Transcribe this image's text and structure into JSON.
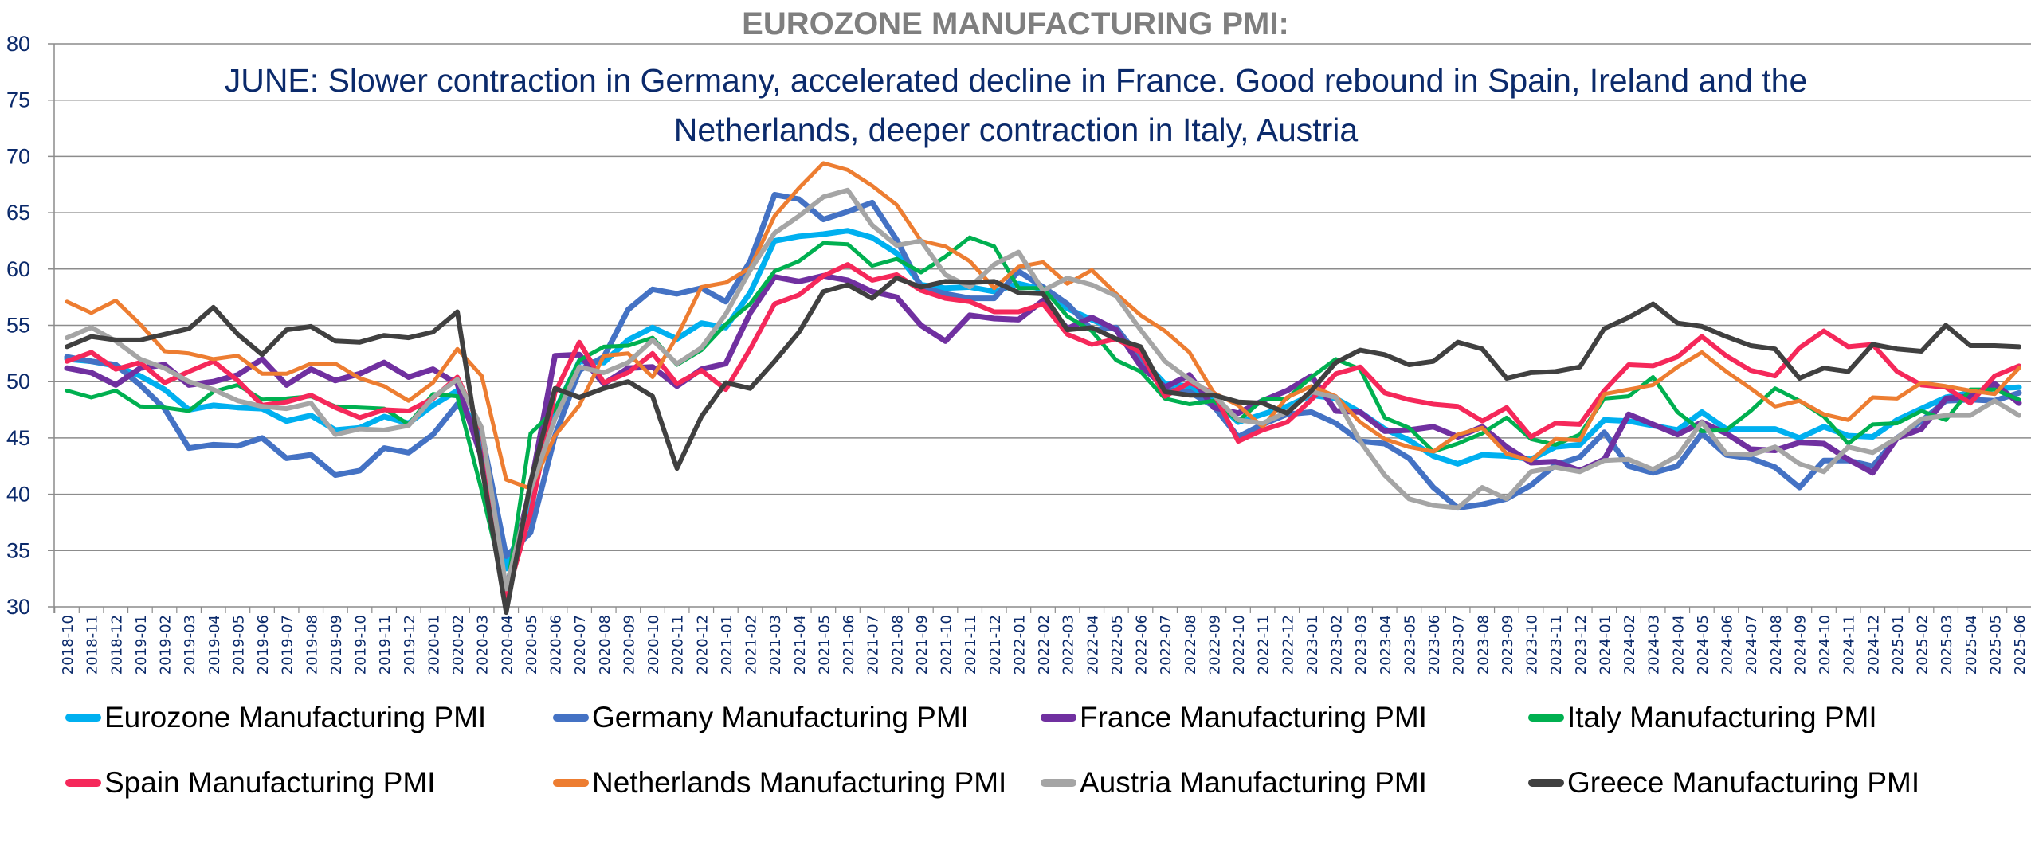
{
  "chart_data": {
    "type": "line",
    "title": "EUROZONE MANUFACTURING PMI:",
    "subtitle": "JUNE: Slower contraction in Germany, accelerated decline in France. Good rebound in Spain, Ireland and the Netherlands, deeper contraction in Italy, Austria",
    "xlabel": "",
    "ylabel": "",
    "ylim": [
      30,
      80
    ],
    "yticks": [
      30,
      35,
      40,
      45,
      50,
      55,
      60,
      65,
      70,
      75,
      80
    ],
    "grid": true,
    "legend_position": "bottom",
    "x": [
      "2018-10",
      "2018-11",
      "2018-12",
      "2019-01",
      "2019-02",
      "2019-03",
      "2019-04",
      "2019-05",
      "2019-06",
      "2019-07",
      "2019-08",
      "2019-09",
      "2019-10",
      "2019-11",
      "2019-12",
      "2020-01",
      "2020-02",
      "2020-03",
      "2020-04",
      "2020-05",
      "2020-06",
      "2020-07",
      "2020-08",
      "2020-09",
      "2020-10",
      "2020-11",
      "2020-12",
      "2021-01",
      "2021-02",
      "2021-03",
      "2021-04",
      "2021-05",
      "2021-06",
      "2021-07",
      "2021-08",
      "2021-09",
      "2021-10",
      "2021-11",
      "2021-12",
      "2022-01",
      "2022-02",
      "2022-03",
      "2022-04",
      "2022-05",
      "2022-06",
      "2022-07",
      "2022-08",
      "2022-09",
      "2022-10",
      "2022-11",
      "2022-12",
      "2023-01",
      "2023-02",
      "2023-03",
      "2023-04",
      "2023-05",
      "2023-06",
      "2023-07",
      "2023-08",
      "2023-09",
      "2023-10",
      "2023-11",
      "2023-12",
      "2024-01",
      "2024-02",
      "2024-03",
      "2024-04",
      "2024-05",
      "2024-06",
      "2024-07",
      "2024-08",
      "2024-09",
      "2024-10",
      "2024-11",
      "2024-12",
      "2025-01",
      "2025-02",
      "2025-03",
      "2025-04",
      "2025-05",
      "2025-06"
    ],
    "series": [
      {
        "name": "Eurozone Manufacturing PMI",
        "color": "#00b0f0",
        "values": [
          52.0,
          51.8,
          51.4,
          50.5,
          49.3,
          47.5,
          47.9,
          47.7,
          47.6,
          46.5,
          47.0,
          45.7,
          45.9,
          46.9,
          46.3,
          47.9,
          49.2,
          44.5,
          33.4,
          39.4,
          47.4,
          51.8,
          51.7,
          53.7,
          54.8,
          53.8,
          55.2,
          54.8,
          57.9,
          62.5,
          62.9,
          63.1,
          63.4,
          62.8,
          61.4,
          58.6,
          58.3,
          58.4,
          58.0,
          58.7,
          58.2,
          56.5,
          55.5,
          54.6,
          52.1,
          49.8,
          49.6,
          48.4,
          46.4,
          47.1,
          47.8,
          48.8,
          48.5,
          47.3,
          45.8,
          44.8,
          43.4,
          42.7,
          43.5,
          43.4,
          43.1,
          44.2,
          44.4,
          46.6,
          46.5,
          46.1,
          45.7,
          47.3,
          45.8,
          45.8,
          45.8,
          45.0,
          46.0,
          45.2,
          45.1,
          46.6,
          47.6,
          48.6,
          49.0,
          49.4,
          49.5
        ]
      },
      {
        "name": "Germany Manufacturing PMI",
        "color": "#4472c4",
        "values": [
          52.2,
          51.8,
          51.5,
          49.7,
          47.6,
          44.1,
          44.4,
          44.3,
          45.0,
          43.2,
          43.5,
          41.7,
          42.1,
          44.1,
          43.7,
          45.3,
          48.0,
          45.4,
          34.5,
          36.6,
          45.2,
          51.0,
          52.2,
          56.4,
          58.2,
          57.8,
          58.3,
          57.1,
          60.7,
          66.6,
          66.2,
          64.4,
          65.1,
          65.9,
          62.6,
          58.4,
          57.8,
          57.4,
          57.4,
          59.8,
          58.4,
          56.9,
          54.6,
          54.8,
          52.0,
          49.3,
          49.1,
          47.8,
          45.1,
          46.2,
          47.1,
          47.3,
          46.3,
          44.7,
          44.5,
          43.2,
          40.6,
          38.8,
          39.1,
          39.6,
          40.8,
          42.6,
          43.3,
          45.5,
          42.5,
          41.9,
          42.5,
          45.4,
          43.5,
          43.2,
          42.4,
          40.6,
          43.0,
          43.0,
          42.5,
          45.0,
          46.5,
          48.3,
          48.4,
          48.3,
          49.0
        ]
      },
      {
        "name": "France Manufacturing PMI",
        "color": "#7030a0",
        "values": [
          51.2,
          50.8,
          49.7,
          51.2,
          51.5,
          49.7,
          50.0,
          50.6,
          52.0,
          49.7,
          51.1,
          50.1,
          50.7,
          51.7,
          50.4,
          51.1,
          49.8,
          43.2,
          31.5,
          40.6,
          52.3,
          52.4,
          49.8,
          51.2,
          51.3,
          49.6,
          51.1,
          51.6,
          56.1,
          59.3,
          58.9,
          59.4,
          59.0,
          58.0,
          57.5,
          55.0,
          53.6,
          55.9,
          55.6,
          55.5,
          57.2,
          54.7,
          55.7,
          54.6,
          51.4,
          49.5,
          50.6,
          47.7,
          47.2,
          48.3,
          49.2,
          50.5,
          47.4,
          47.3,
          45.6,
          45.7,
          46.0,
          45.1,
          46.0,
          44.2,
          42.8,
          42.9,
          42.1,
          43.1,
          47.1,
          46.2,
          45.3,
          46.4,
          45.4,
          44.0,
          43.9,
          44.6,
          44.5,
          43.1,
          41.9,
          45.0,
          45.8,
          48.5,
          48.7,
          49.8,
          48.1
        ]
      },
      {
        "name": "Italy Manufacturing PMI",
        "color": "#00b050",
        "values": [
          49.2,
          48.6,
          49.2,
          47.8,
          47.7,
          47.4,
          49.1,
          49.7,
          48.4,
          48.5,
          48.7,
          47.8,
          47.7,
          47.6,
          46.2,
          48.9,
          48.7,
          40.3,
          31.1,
          45.4,
          47.5,
          51.9,
          53.1,
          53.2,
          53.9,
          51.5,
          52.8,
          55.1,
          56.9,
          59.8,
          60.7,
          62.3,
          62.2,
          60.3,
          60.9,
          59.7,
          61.1,
          62.8,
          62.0,
          58.3,
          58.3,
          55.8,
          54.5,
          51.9,
          50.9,
          48.5,
          48.0,
          48.3,
          46.5,
          48.4,
          48.5,
          50.4,
          52.0,
          51.1,
          46.8,
          45.9,
          43.8,
          44.5,
          45.4,
          46.8,
          44.9,
          44.4,
          45.3,
          48.5,
          48.7,
          50.4,
          47.3,
          45.6,
          45.7,
          47.4,
          49.4,
          48.3,
          46.9,
          44.5,
          46.2,
          46.3,
          47.4,
          46.6,
          49.3,
          49.3,
          48.4
        ]
      },
      {
        "name": "Spain  Manufacturing PMI",
        "color": "#f5285a",
        "values": [
          51.8,
          52.6,
          51.1,
          51.7,
          49.9,
          50.9,
          51.8,
          50.1,
          47.9,
          48.2,
          48.8,
          47.7,
          46.8,
          47.5,
          47.4,
          48.5,
          50.4,
          45.7,
          30.8,
          38.3,
          49.0,
          53.5,
          49.9,
          50.8,
          52.5,
          49.8,
          51.0,
          49.3,
          52.9,
          56.9,
          57.7,
          59.4,
          60.4,
          59.0,
          59.5,
          58.1,
          57.4,
          57.1,
          56.2,
          56.2,
          56.9,
          54.2,
          53.3,
          53.8,
          52.6,
          48.7,
          49.9,
          49.0,
          44.7,
          45.7,
          46.4,
          48.4,
          50.7,
          51.3,
          49.0,
          48.4,
          48.0,
          47.8,
          46.5,
          47.7,
          45.1,
          46.3,
          46.2,
          49.2,
          51.5,
          51.4,
          52.2,
          54.0,
          52.3,
          51.0,
          50.5,
          53.0,
          54.5,
          53.1,
          53.3,
          50.9,
          49.7,
          49.5,
          48.1,
          50.5,
          51.4
        ]
      },
      {
        "name": "Netherlands Manufacturing PMI",
        "color": "#ed7d31",
        "values": [
          57.1,
          56.1,
          57.2,
          55.1,
          52.7,
          52.5,
          52.0,
          52.3,
          50.7,
          50.7,
          51.6,
          51.6,
          50.3,
          49.6,
          48.3,
          49.9,
          52.9,
          50.5,
          41.3,
          40.5,
          45.2,
          47.9,
          52.3,
          52.5,
          50.4,
          54.0,
          58.4,
          58.8,
          60.1,
          64.7,
          67.2,
          69.4,
          68.8,
          67.4,
          65.7,
          62.5,
          62.0,
          60.7,
          58.3,
          60.2,
          60.6,
          58.7,
          59.9,
          57.8,
          55.9,
          54.5,
          52.6,
          49.0,
          47.9,
          46.0,
          48.6,
          49.6,
          48.7,
          46.4,
          44.9,
          44.2,
          43.8,
          45.3,
          45.9,
          43.6,
          43.0,
          44.9,
          44.8,
          48.9,
          49.3,
          49.7,
          51.3,
          52.6,
          50.9,
          49.4,
          47.8,
          48.3,
          47.1,
          46.6,
          48.6,
          48.5,
          49.9,
          49.6,
          49.2,
          48.9,
          51.2
        ]
      },
      {
        "name": "Austria Manufacturing PMI",
        "color": "#a5a5a5",
        "values": [
          53.9,
          54.8,
          53.6,
          52.0,
          51.2,
          50.0,
          49.3,
          48.3,
          47.8,
          47.6,
          48.1,
          45.3,
          45.8,
          45.7,
          46.1,
          48.6,
          50.2,
          45.9,
          31.6,
          40.4,
          46.7,
          51.3,
          50.8,
          51.7,
          53.7,
          51.6,
          53.0,
          56.0,
          59.9,
          63.2,
          64.7,
          66.4,
          67.0,
          63.9,
          62.1,
          62.5,
          59.5,
          58.4,
          60.4,
          61.5,
          58.1,
          59.2,
          58.6,
          57.6,
          54.6,
          51.8,
          50.2,
          48.8,
          46.6,
          46.3,
          47.3,
          49.1,
          48.6,
          44.7,
          41.7,
          39.6,
          39.0,
          38.8,
          40.6,
          39.6,
          42.0,
          42.4,
          42.0,
          43.0,
          43.1,
          42.2,
          43.4,
          46.4,
          43.6,
          43.5,
          44.2,
          42.7,
          42.0,
          44.2,
          43.7,
          45.0,
          46.7,
          47.0,
          47.0,
          48.3,
          47.0
        ]
      },
      {
        "name": "Greece Manufacturing PMI",
        "color": "#404040",
        "values": [
          53.1,
          54.0,
          53.7,
          53.7,
          54.2,
          54.7,
          56.6,
          54.2,
          52.4,
          54.6,
          54.9,
          53.6,
          53.5,
          54.1,
          53.9,
          54.4,
          56.2,
          42.5,
          29.5,
          41.1,
          49.4,
          48.6,
          49.4,
          50.0,
          48.7,
          42.3,
          46.9,
          49.9,
          49.4,
          51.8,
          54.4,
          58.0,
          58.6,
          57.4,
          59.2,
          58.4,
          58.9,
          58.8,
          58.9,
          57.9,
          57.8,
          54.6,
          54.8,
          53.8,
          53.1,
          49.1,
          48.8,
          48.8,
          48.2,
          48.1,
          47.2,
          49.2,
          51.7,
          52.8,
          52.4,
          51.5,
          51.8,
          53.5,
          52.9,
          50.3,
          50.8,
          50.9,
          51.3,
          54.7,
          55.7,
          56.9,
          55.2,
          54.9,
          54.0,
          53.2,
          52.9,
          50.3,
          51.2,
          50.9,
          53.3,
          52.9,
          52.7,
          55.0,
          53.2,
          53.2,
          53.1
        ]
      }
    ]
  },
  "legend": {
    "items": [
      {
        "label": "Eurozone Manufacturing PMI",
        "color": "#00b0f0"
      },
      {
        "label": "Germany Manufacturing PMI",
        "color": "#4472c4"
      },
      {
        "label": "France Manufacturing PMI",
        "color": "#7030a0"
      },
      {
        "label": "Italy Manufacturing PMI",
        "color": "#00b050"
      },
      {
        "label": "Spain  Manufacturing PMI",
        "color": "#f5285a"
      },
      {
        "label": "Netherlands Manufacturing PMI",
        "color": "#ed7d31"
      },
      {
        "label": "Austria Manufacturing PMI",
        "color": "#a5a5a5"
      },
      {
        "label": "Greece Manufacturing PMI",
        "color": "#404040"
      }
    ]
  }
}
